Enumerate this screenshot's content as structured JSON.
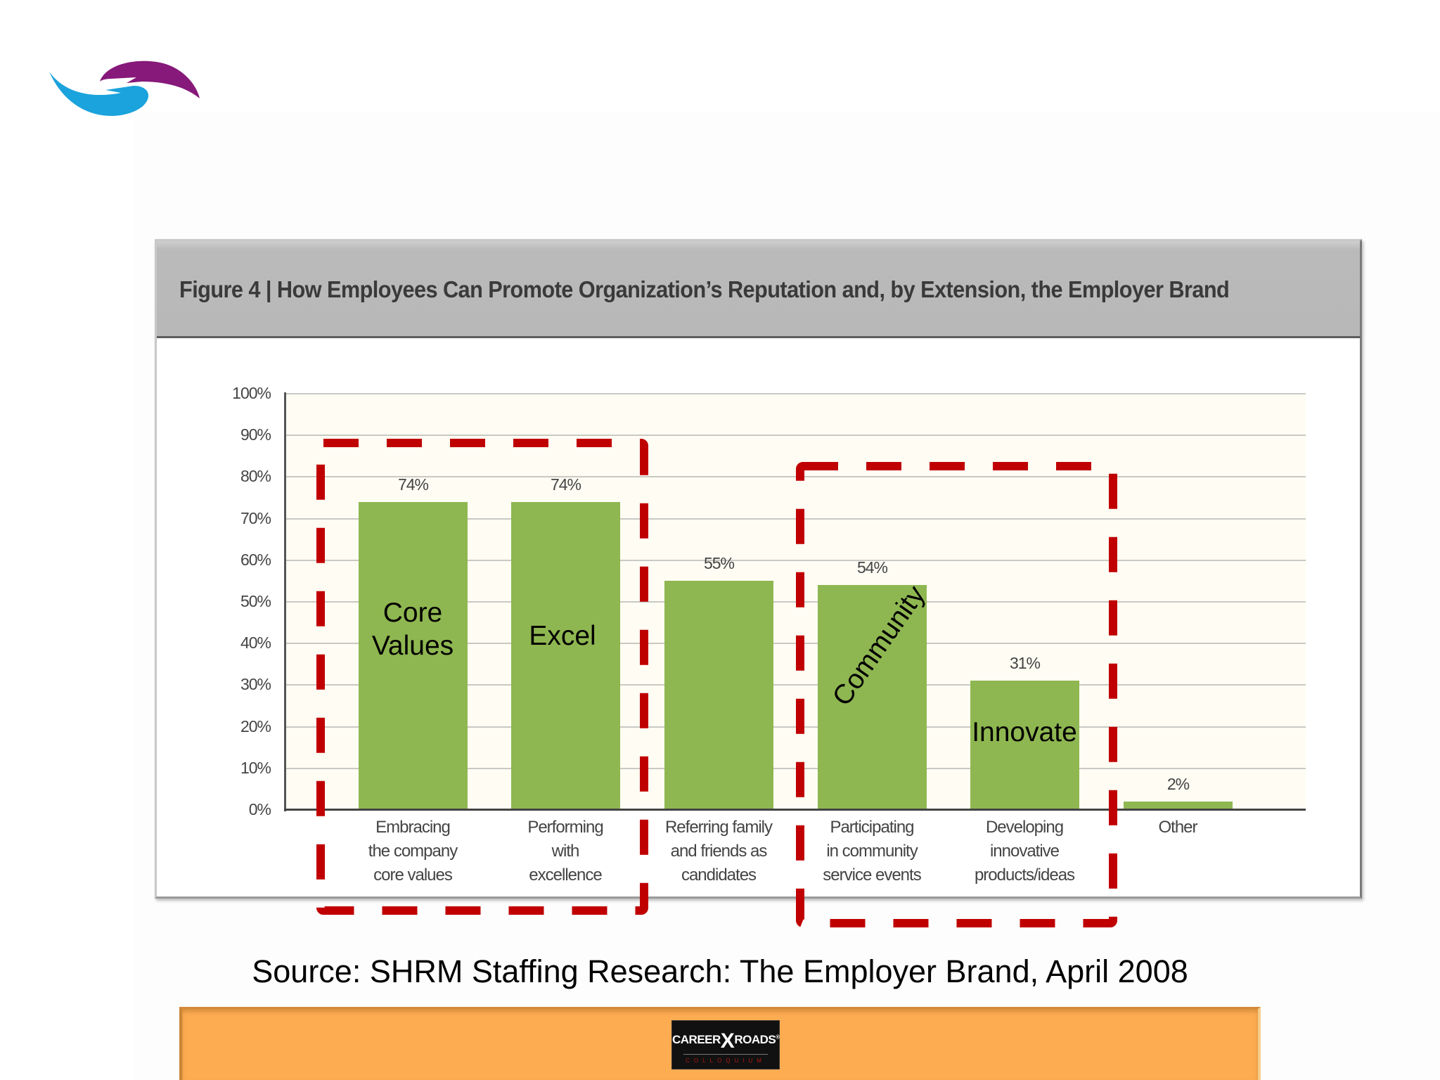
{
  "slide": {
    "logo": {
      "name": "two-swoosh-hands-logo",
      "colors": {
        "left": "#1aa3dc",
        "right": "#86197a"
      }
    },
    "source_text": "Source: SHRM Staffing Research: The Employer Brand, April 2008",
    "footer": {
      "color": "#fdac51",
      "logo_text_left": "CAREER",
      "logo_text_x": "X",
      "logo_text_right": "ROADS",
      "logo_registered": "®",
      "logo_subtext": "COLLOQUIUM"
    }
  },
  "figure": {
    "title": "Figure 4 | How Employees Can Promote Organization’s Reputation and, by Extension, the Employer Brand",
    "header_color": "#b9b9b9"
  },
  "chart_data": {
    "type": "bar",
    "title": "Figure 4 | How Employees Can Promote Organization’s Reputation and, by Extension, the Employer Brand",
    "xlabel": "",
    "ylabel": "",
    "ylim": [
      0,
      100
    ],
    "y_ticks": [
      "100%",
      "90%",
      "80%",
      "70%",
      "60%",
      "50%",
      "40%",
      "30%",
      "20%",
      "10%",
      "0%"
    ],
    "grid": true,
    "legend": null,
    "bar_color": "#8fb751",
    "categories": [
      "Embracing the company core values",
      "Performing with excellence",
      "Referring family and friends as candidates",
      "Participating in community service events",
      "Developing innovative products/ideas",
      "Other"
    ],
    "category_lines": [
      [
        "Embracing",
        "the company",
        "core values"
      ],
      [
        "Performing",
        "with",
        "excellence"
      ],
      [
        "Referring family",
        "and friends as",
        "candidates"
      ],
      [
        "Participating",
        "in community",
        "service events"
      ],
      [
        "Developing",
        "innovative",
        "products/ideas"
      ],
      [
        "Other"
      ]
    ],
    "values": [
      74,
      74,
      55,
      54,
      31,
      2
    ],
    "value_labels": [
      "74%",
      "74%",
      "55%",
      "54%",
      "31%",
      "2%"
    ],
    "annotations": [
      {
        "text": "Core Values",
        "lines": [
          "Core",
          "Values"
        ],
        "on_bar": 0
      },
      {
        "text": "Excel",
        "lines": [
          "Excel"
        ],
        "on_bar": 1
      },
      {
        "text": "Community",
        "lines": [
          "Community"
        ],
        "on_bar": 3,
        "rotation": -55
      },
      {
        "text": "Innovate",
        "lines": [
          "Innovate"
        ],
        "on_bar": 4
      }
    ],
    "highlight_boxes": [
      {
        "style": "red-dashed",
        "color": "#c00000",
        "groups_bars": [
          0,
          1
        ]
      },
      {
        "style": "red-dashed",
        "color": "#c00000",
        "groups_bars": [
          3,
          4
        ]
      }
    ]
  }
}
